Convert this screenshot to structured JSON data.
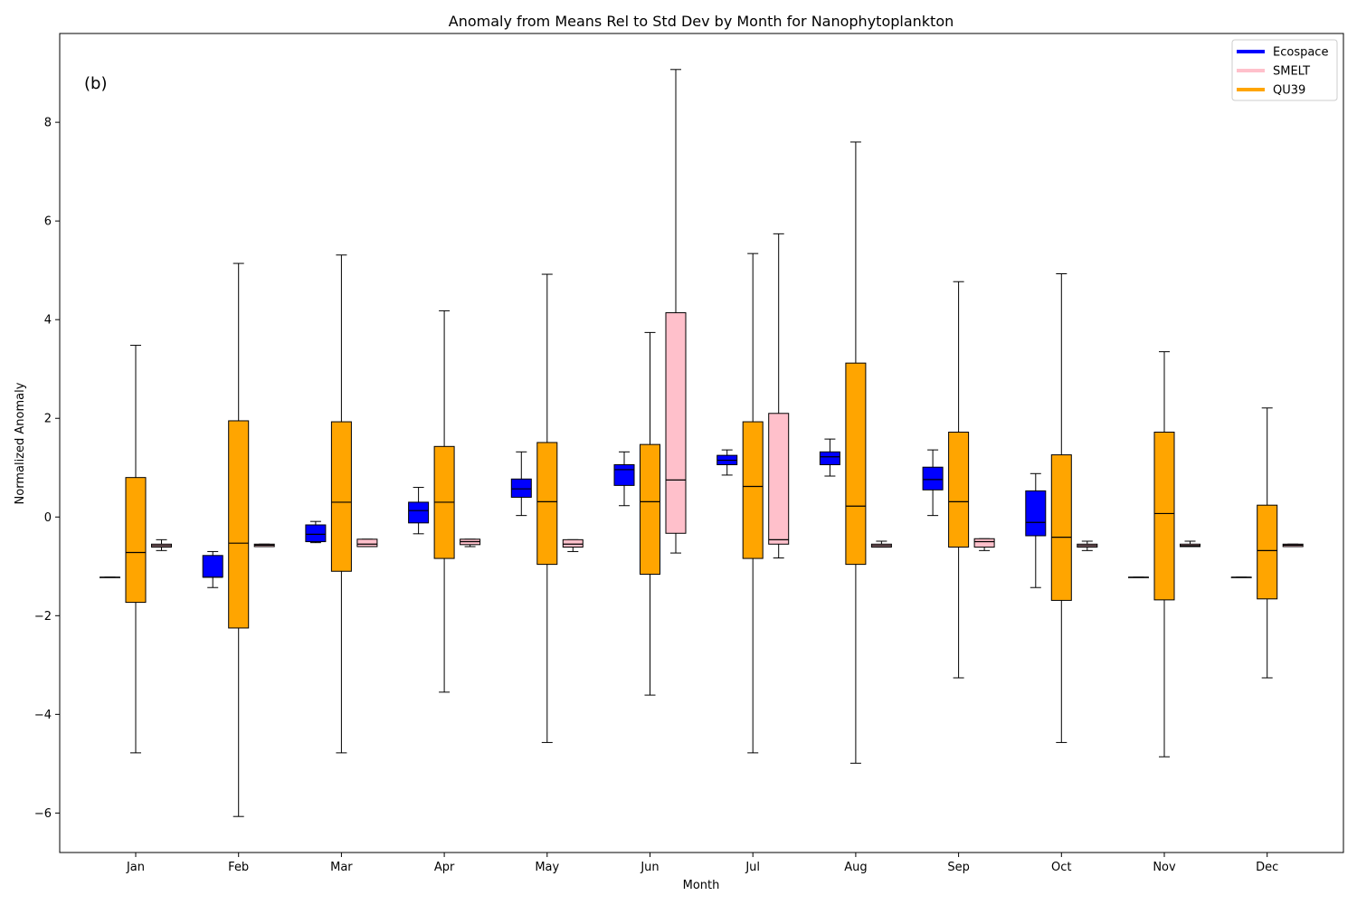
{
  "chart_data": {
    "type": "box",
    "title": "Anomaly from Means Rel to Std Dev by Month for Nanophytoplankton",
    "panel_label": "(b)",
    "xlabel": "Month",
    "ylabel": "Normalized Anomaly",
    "ylim": [
      -6.8,
      9.8
    ],
    "y_ticks": [
      -6,
      -4,
      -2,
      0,
      2,
      4,
      6,
      8
    ],
    "y_tick_labels": [
      "−6",
      "−4",
      "−2",
      "0",
      "2",
      "4",
      "6",
      "8"
    ],
    "categories": [
      "Jan",
      "Feb",
      "Mar",
      "Apr",
      "May",
      "Jun",
      "Jul",
      "Aug",
      "Sep",
      "Oct",
      "Nov",
      "Dec"
    ],
    "legend_position": "top-right",
    "series": [
      {
        "name": "Ecospace",
        "color": "#0000ff",
        "boxes": [
          {
            "min": -1.22,
            "q1": -1.22,
            "median": -1.22,
            "q3": -1.22,
            "max": -1.22
          },
          {
            "min": -1.43,
            "q1": -1.22,
            "median": -1.22,
            "q3": -0.78,
            "max": -0.7
          },
          {
            "min": -0.52,
            "q1": -0.5,
            "median": -0.35,
            "q3": -0.16,
            "max": -0.09
          },
          {
            "min": -0.34,
            "q1": -0.12,
            "median": 0.13,
            "q3": 0.3,
            "max": 0.6
          },
          {
            "min": 0.03,
            "q1": 0.4,
            "median": 0.57,
            "q3": 0.77,
            "max": 1.32
          },
          {
            "min": 0.23,
            "q1": 0.64,
            "median": 0.96,
            "q3": 1.06,
            "max": 1.32
          },
          {
            "min": 0.85,
            "q1": 1.06,
            "median": 1.15,
            "q3": 1.25,
            "max": 1.36
          },
          {
            "min": 0.83,
            "q1": 1.06,
            "median": 1.22,
            "q3": 1.32,
            "max": 1.58
          },
          {
            "min": 0.03,
            "q1": 0.55,
            "median": 0.76,
            "q3": 1.01,
            "max": 1.36
          },
          {
            "min": -1.43,
            "q1": -0.38,
            "median": -0.11,
            "q3": 0.53,
            "max": 0.88
          },
          {
            "min": -1.22,
            "q1": -1.22,
            "median": -1.22,
            "q3": -1.22,
            "max": -1.22
          },
          {
            "min": -1.22,
            "q1": -1.22,
            "median": -1.22,
            "q3": -1.22,
            "max": -1.22
          }
        ]
      },
      {
        "name": "QU39",
        "color": "#ffa500",
        "boxes": [
          {
            "min": -4.78,
            "q1": -1.73,
            "median": -0.72,
            "q3": 0.8,
            "max": 3.48
          },
          {
            "min": -6.07,
            "q1": -2.25,
            "median": -0.53,
            "q3": 1.95,
            "max": 5.14
          },
          {
            "min": -4.78,
            "q1": -1.1,
            "median": 0.3,
            "q3": 1.93,
            "max": 5.31
          },
          {
            "min": -3.55,
            "q1": -0.84,
            "median": 0.3,
            "q3": 1.43,
            "max": 4.18
          },
          {
            "min": -4.57,
            "q1": -0.96,
            "median": 0.31,
            "q3": 1.51,
            "max": 4.92
          },
          {
            "min": -3.61,
            "q1": -1.16,
            "median": 0.31,
            "q3": 1.47,
            "max": 3.74
          },
          {
            "min": -4.78,
            "q1": -0.84,
            "median": 0.62,
            "q3": 1.93,
            "max": 5.34
          },
          {
            "min": -4.99,
            "q1": -0.96,
            "median": 0.22,
            "q3": 3.12,
            "max": 7.6
          },
          {
            "min": -3.26,
            "q1": -0.61,
            "median": 0.31,
            "q3": 1.72,
            "max": 4.77
          },
          {
            "min": -4.57,
            "q1": -1.69,
            "median": -0.41,
            "q3": 1.26,
            "max": 4.93
          },
          {
            "min": -4.86,
            "q1": -1.68,
            "median": 0.07,
            "q3": 1.72,
            "max": 3.35
          },
          {
            "min": -3.26,
            "q1": -1.66,
            "median": -0.68,
            "q3": 0.24,
            "max": 2.21
          }
        ]
      },
      {
        "name": "SMELT",
        "color": "#ffc0cb",
        "boxes": [
          {
            "min": -0.68,
            "q1": -0.61,
            "median": -0.58,
            "q3": -0.55,
            "max": -0.46
          },
          {
            "min": -0.6,
            "q1": -0.6,
            "median": -0.57,
            "q3": -0.55,
            "max": -0.55
          },
          {
            "min": -0.6,
            "q1": -0.6,
            "median": -0.55,
            "q3": -0.45,
            "max": -0.45
          },
          {
            "min": -0.6,
            "q1": -0.56,
            "median": -0.5,
            "q3": -0.45,
            "max": -0.45
          },
          {
            "min": -0.7,
            "q1": -0.61,
            "median": -0.55,
            "q3": -0.46,
            "max": -0.46
          },
          {
            "min": -0.73,
            "q1": -0.33,
            "median": 0.75,
            "q3": 4.14,
            "max": 9.07
          },
          {
            "min": -0.83,
            "q1": -0.55,
            "median": -0.46,
            "q3": 2.1,
            "max": 5.74
          },
          {
            "min": -0.61,
            "q1": -0.61,
            "median": -0.58,
            "q3": -0.55,
            "max": -0.49
          },
          {
            "min": -0.68,
            "q1": -0.61,
            "median": -0.5,
            "q3": -0.44,
            "max": -0.44
          },
          {
            "min": -0.68,
            "q1": -0.61,
            "median": -0.58,
            "q3": -0.55,
            "max": -0.49
          },
          {
            "min": -0.6,
            "q1": -0.6,
            "median": -0.58,
            "q3": -0.55,
            "max": -0.49
          },
          {
            "min": -0.6,
            "q1": -0.6,
            "median": -0.57,
            "q3": -0.55,
            "max": -0.55
          }
        ]
      }
    ],
    "legend": [
      {
        "name": "Ecospace",
        "color": "#0000ff"
      },
      {
        "name": "SMELT",
        "color": "#ffc0cb"
      },
      {
        "name": "QU39",
        "color": "#ffa500"
      }
    ]
  }
}
